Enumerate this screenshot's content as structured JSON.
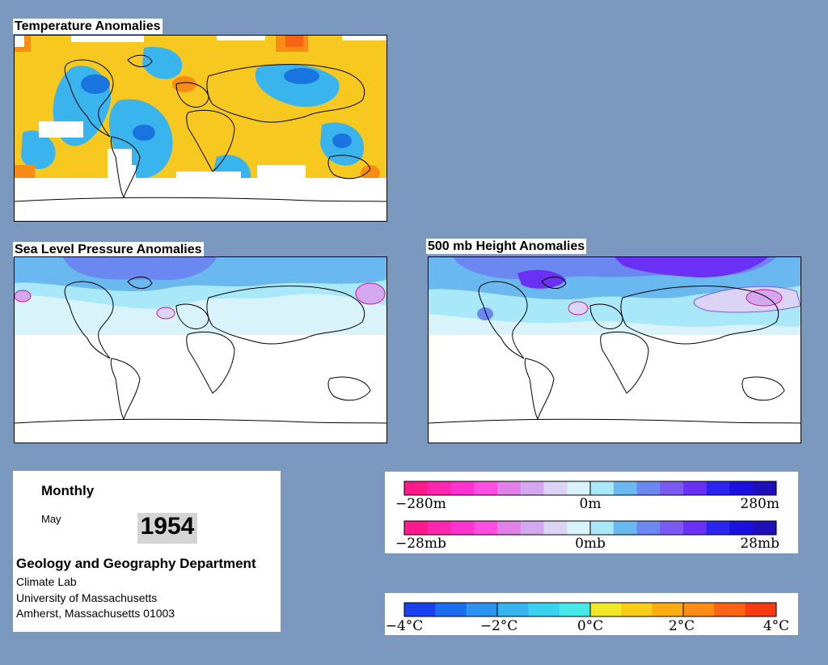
{
  "temperature_panel": {
    "title": "Temperature Anomalies"
  },
  "slp_panel": {
    "title": "Sea Level Pressure Anomalies"
  },
  "height_panel": {
    "title": "500 mb Height Anomalies"
  },
  "info": {
    "frequency": "Monthly",
    "month": "May",
    "year": "1954",
    "department": "Geology and Geography Department",
    "address_lines": [
      "Climate Lab",
      "University of Massachusetts",
      "Amherst, Massachusetts 01003"
    ]
  },
  "height_legend": {
    "labels": [
      "−280m",
      "0m",
      "280m"
    ],
    "colors": [
      "#ff1a8c",
      "#ff26b0",
      "#ff33d0",
      "#ff4de0",
      "#e080e8",
      "#d4a8ee",
      "#dcd4f4",
      "#d8f4fa",
      "#a8e8f8",
      "#6ab8f0",
      "#6a88f0",
      "#7a5af0",
      "#6a30f4",
      "#2a26f0",
      "#1a10e0",
      "#1e10b8"
    ]
  },
  "slp_legend": {
    "labels": [
      "−28mb",
      "0mb",
      "28mb"
    ],
    "colors": [
      "#ff1a8c",
      "#ff26b0",
      "#ff33d0",
      "#ff4de0",
      "#e080e8",
      "#d4a8ee",
      "#dcd4f4",
      "#d8f4fa",
      "#a8e8f8",
      "#6ab8f0",
      "#6a88f0",
      "#7a5af0",
      "#6a30f4",
      "#2a26f0",
      "#1a10e0",
      "#1e10b8"
    ]
  },
  "temp_legend": {
    "labels": [
      "−4°C",
      "−2°C",
      "0°C",
      "2°C",
      "4°C"
    ],
    "colors": [
      "#1a40f0",
      "#1a6cf0",
      "#2a94f0",
      "#36b4f0",
      "#3ad0f0",
      "#46e8e8",
      "#f0e828",
      "#f8cc18",
      "#fcac10",
      "#fc8c14",
      "#fa6414",
      "#f43c10"
    ]
  },
  "colors": {
    "page_background": "#7b98bf",
    "land_outline": "#000000"
  }
}
